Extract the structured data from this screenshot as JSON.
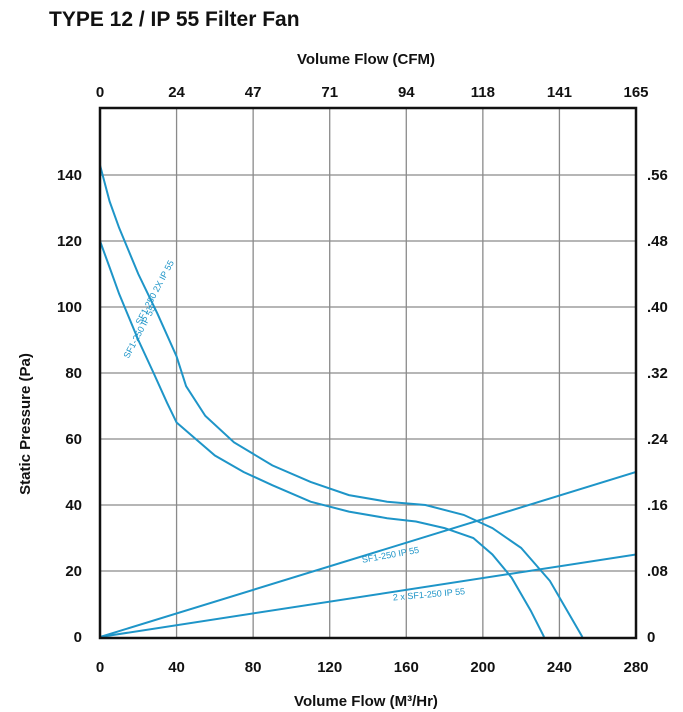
{
  "title": "TYPE 12 / IP 55 Filter Fan",
  "chart_data": {
    "type": "line",
    "title": "TYPE 12 / IP 55 Filter Fan",
    "xlabel": "Volume Flow (M³/Hr)",
    "x2label": "Volume Flow (CFM)",
    "ylabel": "Static Pressure (Pa)",
    "xlim": [
      0,
      280
    ],
    "ylim": [
      0,
      150
    ],
    "y2lim": [
      0,
      0.6
    ],
    "x_ticks": [
      "0",
      "40",
      "80",
      "120",
      "160",
      "200",
      "240",
      "280"
    ],
    "x2_ticks": [
      "0",
      "24",
      "47",
      "71",
      "94",
      "118",
      "141",
      "165"
    ],
    "y_ticks": [
      "0",
      "20",
      "40",
      "60",
      "80",
      "100",
      "120",
      "140"
    ],
    "y2_ticks": [
      "0",
      ".08",
      ".16",
      ".24",
      ".32",
      ".40",
      ".48",
      ".56"
    ],
    "grid": true,
    "line_color": "#1e95c8",
    "series": [
      {
        "name": "SF1-250 IP 55",
        "x": [
          0,
          5,
          10,
          15,
          20,
          28,
          35,
          40,
          50,
          60,
          75,
          90,
          110,
          130,
          150,
          165,
          180,
          195,
          205,
          215,
          225,
          232
        ],
        "y": [
          120,
          112,
          104,
          97,
          90,
          80,
          71,
          65,
          60,
          55,
          50,
          46,
          41,
          38,
          36,
          35,
          33,
          30,
          25,
          18,
          8,
          0
        ]
      },
      {
        "name": "SF1-250 2X IP 55",
        "x": [
          0,
          5,
          10,
          15,
          20,
          30,
          40,
          45,
          55,
          70,
          90,
          110,
          130,
          150,
          170,
          190,
          205,
          220,
          235,
          245,
          252
        ],
        "y": [
          143,
          132,
          124,
          117,
          110,
          98,
          85,
          76,
          67,
          59,
          52,
          47,
          43,
          41,
          40,
          37,
          33,
          27,
          17,
          7,
          0
        ]
      },
      {
        "name": "SF1-250 IP 55",
        "x": [
          0,
          280
        ],
        "y": [
          0,
          50
        ]
      },
      {
        "name": "2 x SF1-250 IP 55",
        "x": [
          0,
          280
        ],
        "y": [
          0,
          25
        ]
      }
    ]
  }
}
